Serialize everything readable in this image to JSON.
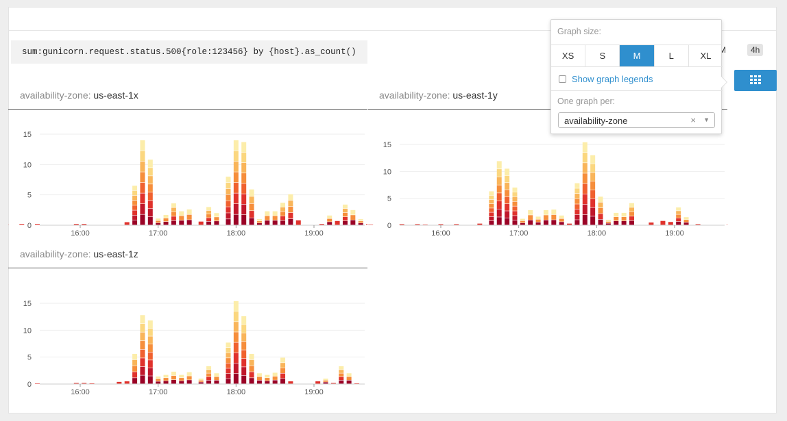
{
  "query": "sum:gunicorn.request.status.500{role:123456} by {host}.as_count()",
  "time_controls": {
    "partial_label": "PM",
    "range_label": "4h"
  },
  "grid_button": {
    "icon": "grid-icon"
  },
  "popover": {
    "graph_size_label": "Graph size:",
    "sizes": [
      "XS",
      "S",
      "M",
      "L",
      "XL"
    ],
    "active_size": "M",
    "legend_label": "Show graph legends",
    "legend_checked": false,
    "group_label": "One graph per:",
    "group_value": "availability-zone",
    "clear_symbol": "×",
    "dropdown_symbol": "▼"
  },
  "palette": [
    "#9b0326",
    "#c0172b",
    "#e0322c",
    "#f0612f",
    "#f68e3b",
    "#f9b55a",
    "#fbd77f",
    "#fcedaa"
  ],
  "graphs": [
    {
      "key_label": "availability-zone:",
      "value_label": "us-east-1x",
      "chart_data": {
        "type": "bar",
        "stacked": true,
        "yticks": [
          0,
          5,
          10,
          15
        ],
        "ylim": [
          0,
          15
        ],
        "xticks": [
          "16:00",
          "17:00",
          "18:00",
          "19:00"
        ],
        "bars": [
          {
            "t": 15.05,
            "v": 0.1
          },
          {
            "t": 15.25,
            "v": 0.2
          },
          {
            "t": 15.45,
            "v": 0.2
          },
          {
            "t": 15.95,
            "v": 0.2
          },
          {
            "t": 16.05,
            "v": 0.2
          },
          {
            "t": 16.6,
            "v": 0.5
          },
          {
            "t": 16.7,
            "v": 6.5
          },
          {
            "t": 16.8,
            "v": 14
          },
          {
            "t": 16.9,
            "v": 10.8
          },
          {
            "t": 17.0,
            "v": 1.1
          },
          {
            "t": 17.1,
            "v": 1.7
          },
          {
            "t": 17.2,
            "v": 3.6
          },
          {
            "t": 17.3,
            "v": 2.3
          },
          {
            "t": 17.4,
            "v": 2.6
          },
          {
            "t": 17.55,
            "v": 0.6
          },
          {
            "t": 17.65,
            "v": 3.0
          },
          {
            "t": 17.75,
            "v": 2.0
          },
          {
            "t": 17.9,
            "v": 8.0
          },
          {
            "t": 18.0,
            "v": 14.0
          },
          {
            "t": 18.1,
            "v": 13.7
          },
          {
            "t": 18.2,
            "v": 5.9
          },
          {
            "t": 18.3,
            "v": 1.0
          },
          {
            "t": 18.4,
            "v": 2.3
          },
          {
            "t": 18.5,
            "v": 2.3
          },
          {
            "t": 18.6,
            "v": 3.7
          },
          {
            "t": 18.7,
            "v": 5.1
          },
          {
            "t": 18.8,
            "v": 0.8
          },
          {
            "t": 19.1,
            "v": 0.2
          },
          {
            "t": 19.2,
            "v": 1.6
          },
          {
            "t": 19.3,
            "v": 0.7
          },
          {
            "t": 19.4,
            "v": 3.4
          },
          {
            "t": 19.5,
            "v": 2.5
          },
          {
            "t": 19.6,
            "v": 1.0
          },
          {
            "t": 19.7,
            "v": 0.2
          },
          {
            "t": 20.05,
            "v": 0.2
          }
        ]
      }
    },
    {
      "key_label": "availability-zone:",
      "value_label": "us-east-1y",
      "chart_data": {
        "type": "bar",
        "stacked": true,
        "yticks": [
          0,
          5,
          10,
          15
        ],
        "ylim": [
          0,
          15
        ],
        "xticks": [
          "16:00",
          "17:00",
          "18:00",
          "19:00"
        ],
        "bars": [
          {
            "t": 15.1,
            "v": 0.1
          },
          {
            "t": 15.5,
            "v": 0.2
          },
          {
            "t": 15.7,
            "v": 0.2
          },
          {
            "t": 15.8,
            "v": 0.1
          },
          {
            "t": 16.0,
            "v": 0.2
          },
          {
            "t": 16.2,
            "v": 0.2
          },
          {
            "t": 16.5,
            "v": 0.3
          },
          {
            "t": 16.65,
            "v": 6.3
          },
          {
            "t": 16.75,
            "v": 11.9
          },
          {
            "t": 16.85,
            "v": 10.5
          },
          {
            "t": 16.95,
            "v": 7.0
          },
          {
            "t": 17.05,
            "v": 1.2
          },
          {
            "t": 17.15,
            "v": 2.8
          },
          {
            "t": 17.25,
            "v": 1.6
          },
          {
            "t": 17.35,
            "v": 2.8
          },
          {
            "t": 17.45,
            "v": 2.9
          },
          {
            "t": 17.55,
            "v": 1.8
          },
          {
            "t": 17.65,
            "v": 0.3
          },
          {
            "t": 17.75,
            "v": 7.8
          },
          {
            "t": 17.85,
            "v": 15.4
          },
          {
            "t": 17.95,
            "v": 13.0
          },
          {
            "t": 18.05,
            "v": 5.3
          },
          {
            "t": 18.15,
            "v": 1.0
          },
          {
            "t": 18.25,
            "v": 2.3
          },
          {
            "t": 18.35,
            "v": 2.3
          },
          {
            "t": 18.45,
            "v": 4.1
          },
          {
            "t": 18.7,
            "v": 0.5
          },
          {
            "t": 18.85,
            "v": 0.8
          },
          {
            "t": 18.95,
            "v": 0.6
          },
          {
            "t": 19.05,
            "v": 3.3
          },
          {
            "t": 19.15,
            "v": 1.5
          },
          {
            "t": 19.3,
            "v": 0.2
          },
          {
            "t": 19.7,
            "v": 0.2
          }
        ]
      }
    },
    {
      "key_label": "availability-zone:",
      "value_label": "us-east-1z",
      "chart_data": {
        "type": "bar",
        "stacked": true,
        "yticks": [
          0,
          5,
          10,
          15
        ],
        "ylim": [
          0,
          15
        ],
        "xticks": [
          "16:00",
          "17:00",
          "18:00",
          "19:00"
        ],
        "bars": [
          {
            "t": 15.45,
            "v": 0.1
          },
          {
            "t": 15.95,
            "v": 0.2
          },
          {
            "t": 16.05,
            "v": 0.2
          },
          {
            "t": 16.15,
            "v": 0.1
          },
          {
            "t": 16.5,
            "v": 0.4
          },
          {
            "t": 16.6,
            "v": 0.5
          },
          {
            "t": 16.7,
            "v": 5.6
          },
          {
            "t": 16.8,
            "v": 12.8
          },
          {
            "t": 16.9,
            "v": 11.8
          },
          {
            "t": 17.0,
            "v": 1.4
          },
          {
            "t": 17.1,
            "v": 1.7
          },
          {
            "t": 17.2,
            "v": 2.3
          },
          {
            "t": 17.3,
            "v": 1.7
          },
          {
            "t": 17.4,
            "v": 2.2
          },
          {
            "t": 17.55,
            "v": 1.0
          },
          {
            "t": 17.65,
            "v": 3.3
          },
          {
            "t": 17.75,
            "v": 2.0
          },
          {
            "t": 17.9,
            "v": 7.7
          },
          {
            "t": 18.0,
            "v": 15.4
          },
          {
            "t": 18.1,
            "v": 12.6
          },
          {
            "t": 18.2,
            "v": 5.6
          },
          {
            "t": 18.3,
            "v": 2.0
          },
          {
            "t": 18.4,
            "v": 1.7
          },
          {
            "t": 18.5,
            "v": 2.1
          },
          {
            "t": 18.6,
            "v": 4.9
          },
          {
            "t": 18.7,
            "v": 0.5
          },
          {
            "t": 19.05,
            "v": 0.5
          },
          {
            "t": 19.15,
            "v": 1.0
          },
          {
            "t": 19.25,
            "v": 0.2
          },
          {
            "t": 19.35,
            "v": 3.3
          },
          {
            "t": 19.45,
            "v": 2.0
          },
          {
            "t": 19.55,
            "v": 0.1
          }
        ]
      }
    }
  ]
}
